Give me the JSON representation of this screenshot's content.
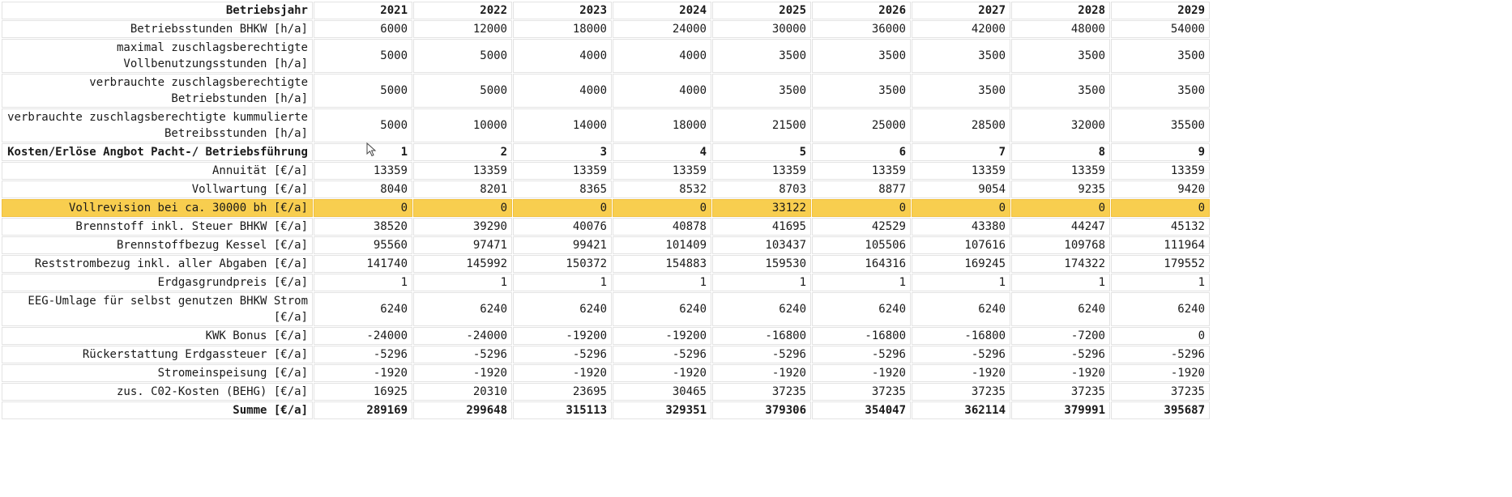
{
  "header": {
    "label": "Betriebsjahr",
    "years": [
      "2021",
      "2022",
      "2023",
      "2024",
      "2025",
      "2026",
      "2027",
      "2028",
      "2029"
    ]
  },
  "rows": [
    {
      "label": "Betriebsstunden BHKW [h/a]",
      "values": [
        "6000",
        "12000",
        "18000",
        "24000",
        "30000",
        "36000",
        "42000",
        "48000",
        "54000"
      ],
      "style": "normal"
    },
    {
      "label": "maximal zuschlagsberechtigte Vollbenutzungsstunden [h/a]",
      "values": [
        "5000",
        "5000",
        "4000",
        "4000",
        "3500",
        "3500",
        "3500",
        "3500",
        "3500"
      ],
      "style": "normal"
    },
    {
      "label": "verbrauchte zuschlagsberechtigte Betriebstunden [h/a]",
      "values": [
        "5000",
        "5000",
        "4000",
        "4000",
        "3500",
        "3500",
        "3500",
        "3500",
        "3500"
      ],
      "style": "normal"
    },
    {
      "label": "verbrauchte zuschlagsberechtigte kummulierte Betreibsstunden [h/a]",
      "values": [
        "5000",
        "10000",
        "14000",
        "18000",
        "21500",
        "25000",
        "28500",
        "32000",
        "35500"
      ],
      "style": "normal"
    },
    {
      "label": "Kosten/Erlöse Angbot Pacht-/ Betriebsführung",
      "values": [
        "1",
        "2",
        "3",
        "4",
        "5",
        "6",
        "7",
        "8",
        "9"
      ],
      "style": "bold"
    },
    {
      "label": "Annuität [€/a]",
      "values": [
        "13359",
        "13359",
        "13359",
        "13359",
        "13359",
        "13359",
        "13359",
        "13359",
        "13359"
      ],
      "style": "normal"
    },
    {
      "label": "Vollwartung [€/a]",
      "values": [
        "8040",
        "8201",
        "8365",
        "8532",
        "8703",
        "8877",
        "9054",
        "9235",
        "9420"
      ],
      "style": "normal"
    },
    {
      "label": "Vollrevision bei ca. 30000 bh [€/a]",
      "values": [
        "0",
        "0",
        "0",
        "0",
        "33122",
        "0",
        "0",
        "0",
        "0"
      ],
      "style": "highlight"
    },
    {
      "label": "Brennstoff inkl. Steuer BHKW [€/a]",
      "values": [
        "38520",
        "39290",
        "40076",
        "40878",
        "41695",
        "42529",
        "43380",
        "44247",
        "45132"
      ],
      "style": "normal"
    },
    {
      "label": "Brennstoffbezug Kessel [€/a]",
      "values": [
        "95560",
        "97471",
        "99421",
        "101409",
        "103437",
        "105506",
        "107616",
        "109768",
        "111964"
      ],
      "style": "normal"
    },
    {
      "label": "Reststrombezug inkl. aller Abgaben [€/a]",
      "values": [
        "141740",
        "145992",
        "150372",
        "154883",
        "159530",
        "164316",
        "169245",
        "174322",
        "179552"
      ],
      "style": "normal"
    },
    {
      "label": "Erdgasgrundpreis [€/a]",
      "values": [
        "1",
        "1",
        "1",
        "1",
        "1",
        "1",
        "1",
        "1",
        "1"
      ],
      "style": "normal"
    },
    {
      "label": "EEG-Umlage für selbst genutzen BHKW Strom [€/a]",
      "values": [
        "6240",
        "6240",
        "6240",
        "6240",
        "6240",
        "6240",
        "6240",
        "6240",
        "6240"
      ],
      "style": "normal"
    },
    {
      "label": "KWK Bonus [€/a]",
      "values": [
        "-24000",
        "-24000",
        "-19200",
        "-19200",
        "-16800",
        "-16800",
        "-16800",
        "-7200",
        "0"
      ],
      "style": "normal"
    },
    {
      "label": "Rückerstattung Erdgassteuer [€/a]",
      "values": [
        "-5296",
        "-5296",
        "-5296",
        "-5296",
        "-5296",
        "-5296",
        "-5296",
        "-5296",
        "-5296"
      ],
      "style": "normal"
    },
    {
      "label": "Stromeinspeisung [€/a]",
      "values": [
        "-1920",
        "-1920",
        "-1920",
        "-1920",
        "-1920",
        "-1920",
        "-1920",
        "-1920",
        "-1920"
      ],
      "style": "normal"
    },
    {
      "label": "zus. C02-Kosten (BEHG) [€/a]",
      "values": [
        "16925",
        "20310",
        "23695",
        "30465",
        "37235",
        "37235",
        "37235",
        "37235",
        "37235"
      ],
      "style": "normal"
    },
    {
      "label": "Summe [€/a]",
      "values": [
        "289169",
        "299648",
        "315113",
        "329351",
        "379306",
        "354047",
        "362114",
        "379991",
        "395687"
      ],
      "style": "bold"
    }
  ],
  "colors": {
    "highlight": "#f8ce4f",
    "gridline": "#e3e3e3"
  },
  "cursor": "mouse-pointer-icon"
}
